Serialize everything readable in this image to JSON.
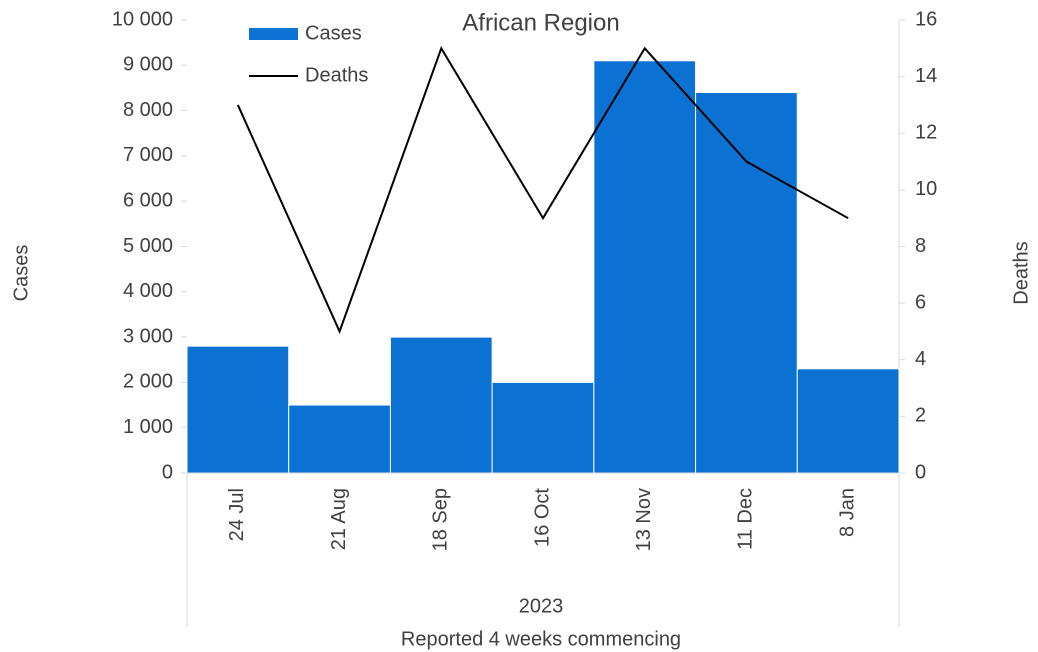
{
  "chart_data": {
    "type": "bar-line",
    "title": "African Region",
    "categories": [
      "24 Jul",
      "21 Aug",
      "18 Sep",
      "16 Oct",
      "13 Nov",
      "11 Dec",
      "8 Jan"
    ],
    "x_group": "2023",
    "x_label": "Reported 4 weeks commencing",
    "y_label": "Cases",
    "y2_label": "Deaths",
    "series": [
      {
        "name": "Cases",
        "type": "bar",
        "color": "#0b72d4",
        "values": [
          2800,
          1500,
          3000,
          2000,
          9100,
          8400,
          2300
        ]
      },
      {
        "name": "Deaths",
        "type": "line",
        "axis": "y2",
        "color": "#000000",
        "values": [
          13,
          5,
          15,
          9,
          15,
          11,
          9
        ]
      }
    ],
    "ylim": [
      0,
      10000
    ],
    "yticks": [
      0,
      {
        "value": 1000,
        "label": "1 000"
      },
      {
        "value": 2000,
        "label": "2 000"
      },
      {
        "value": 3000,
        "label": "3 000"
      },
      {
        "value": 4000,
        "label": "4 000"
      },
      {
        "value": 5000,
        "label": "5 000"
      },
      {
        "value": 6000,
        "label": "6 000"
      },
      {
        "value": 7000,
        "label": "7 000"
      },
      {
        "value": 8000,
        "label": "8 000"
      },
      {
        "value": 9000,
        "label": "9 000"
      },
      {
        "value": 10000,
        "label": "10 000"
      }
    ],
    "y2lim": [
      0,
      16
    ],
    "y2ticks": [
      0,
      2,
      4,
      6,
      8,
      10,
      12,
      14,
      16
    ],
    "legend": "top-left"
  }
}
